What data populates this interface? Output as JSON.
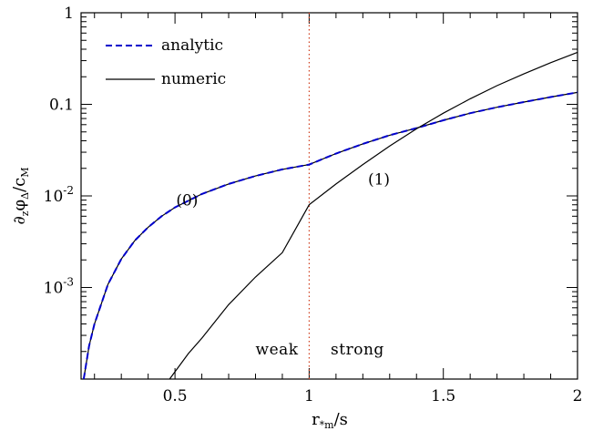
{
  "chart_data": {
    "type": "line",
    "xlabel": "r*m/s",
    "xlabel_parts": {
      "main": "r",
      "sub": "*m",
      "suffix": "/s"
    },
    "ylabel": "∂zφΔ/cM",
    "ylabel_parts": {
      "d": "∂",
      "d_sub": "z",
      "phi": "φ",
      "phi_sub": "Δ",
      "div": "/",
      "c": "c",
      "c_sub": "M"
    },
    "xlim": [
      0.15,
      2.0
    ],
    "ylim": [
      0.0001,
      1
    ],
    "yscale": "log",
    "x_ticks": [
      {
        "value": 0.5,
        "label": "0.5"
      },
      {
        "value": 1,
        "label": "1"
      },
      {
        "value": 1.5,
        "label": "1.5"
      },
      {
        "value": 2,
        "label": "2"
      }
    ],
    "y_ticks": [
      {
        "value": 1,
        "label": "1",
        "exp": ""
      },
      {
        "value": 0.1,
        "label": "0.1",
        "exp": ""
      },
      {
        "value": 0.01,
        "label": "10",
        "exp": "-2"
      },
      {
        "value": 0.001,
        "label": "10",
        "exp": "-3"
      }
    ],
    "legend": {
      "position": "top-left",
      "entries": [
        {
          "label": "analytic",
          "style": "dashed",
          "color": "#0000cc"
        },
        {
          "label": "numeric",
          "style": "solid",
          "color": "#000000"
        }
      ]
    },
    "series": [
      {
        "name": "numeric",
        "label": "(0)",
        "color": "#000000",
        "x": [
          0.16,
          0.18,
          0.2,
          0.25,
          0.3,
          0.35,
          0.4,
          0.45,
          0.5,
          0.6,
          0.7,
          0.8,
          0.9,
          1.0,
          1.1,
          1.2,
          1.3,
          1.4,
          1.5,
          1.6,
          1.7,
          1.8,
          1.9,
          2.0
        ],
        "y": [
          0.0001,
          0.00023,
          0.0004,
          0.00108,
          0.00205,
          0.00325,
          0.00455,
          0.006,
          0.0075,
          0.0105,
          0.0135,
          0.0165,
          0.0195,
          0.022,
          0.029,
          0.037,
          0.046,
          0.055,
          0.067,
          0.08,
          0.093,
          0.106,
          0.12,
          0.135
        ]
      },
      {
        "name": "analytic",
        "color": "#0000cc",
        "dashed": true,
        "x": [
          0.16,
          0.18,
          0.2,
          0.25,
          0.3,
          0.35,
          0.4,
          0.45,
          0.5,
          0.6,
          0.7,
          0.8,
          0.9,
          1.0,
          1.1,
          1.2,
          1.3,
          1.4,
          1.5,
          1.6,
          1.7,
          1.8,
          1.9,
          2.0
        ],
        "y": [
          0.0001,
          0.00023,
          0.0004,
          0.00108,
          0.00205,
          0.00325,
          0.00455,
          0.006,
          0.0075,
          0.0105,
          0.0135,
          0.0165,
          0.0195,
          0.022,
          0.029,
          0.037,
          0.046,
          0.055,
          0.067,
          0.08,
          0.093,
          0.106,
          0.12,
          0.135
        ]
      },
      {
        "name": "numeric",
        "label": "(1)",
        "color": "#000000",
        "x": [
          0.48,
          0.55,
          0.6,
          0.7,
          0.8,
          0.9,
          1.0,
          1.1,
          1.2,
          1.3,
          1.4,
          1.5,
          1.6,
          1.7,
          1.8,
          1.9,
          2.0
        ],
        "y": [
          0.0001,
          0.00019,
          0.00028,
          0.00065,
          0.0013,
          0.0024,
          0.008,
          0.0135,
          0.022,
          0.035,
          0.054,
          0.08,
          0.115,
          0.16,
          0.215,
          0.285,
          0.37
        ]
      }
    ],
    "vline": {
      "x": 1,
      "color": "#d04020",
      "style": "dotted"
    },
    "annotations": [
      {
        "text": "(0)",
        "x": 0.545,
        "y": 0.0079
      },
      {
        "text": "(1)",
        "x": 1.26,
        "y": 0.0133
      }
    ],
    "regions": [
      {
        "text": "weak",
        "x": 0.88,
        "y": 0.000185
      },
      {
        "text": "strong",
        "x": 1.18,
        "y": 0.000185
      }
    ]
  }
}
